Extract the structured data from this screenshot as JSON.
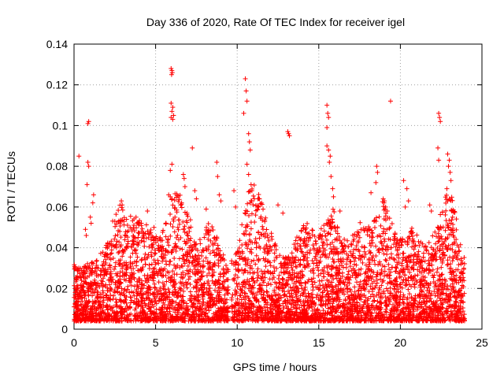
{
  "chart_data": {
    "type": "scatter",
    "title": "Day 336 of 2020, Rate Of TEC Index for receiver igel",
    "xlabel": "GPS time / hours",
    "ylabel": "ROTI / TECUs",
    "xlim": [
      0,
      25
    ],
    "ylim": [
      0,
      0.14
    ],
    "xticks": [
      0,
      5,
      10,
      15,
      20,
      25
    ],
    "xtick_labels": [
      "0",
      "5",
      "10",
      "15",
      "20",
      "25"
    ],
    "yticks": [
      0,
      0.02,
      0.04,
      0.06,
      0.08,
      0.1,
      0.12,
      0.14
    ],
    "ytick_labels": [
      "0",
      "0.02",
      "0.04",
      "0.06",
      "0.08",
      "0.1",
      "0.12",
      "0.14"
    ],
    "grid": true,
    "marker": "plus",
    "color": "#ff0000",
    "series": [
      {
        "name": "ROTI",
        "points": [
          [
            0.3,
            0.085
          ],
          [
            0.85,
            0.101
          ],
          [
            0.9,
            0.102
          ],
          [
            0.85,
            0.082
          ],
          [
            0.9,
            0.08
          ],
          [
            0.8,
            0.071
          ],
          [
            1.2,
            0.066
          ],
          [
            1.15,
            0.062
          ],
          [
            1.0,
            0.055
          ],
          [
            1.05,
            0.052
          ],
          [
            0.7,
            0.049
          ],
          [
            0.75,
            0.046
          ],
          [
            2.5,
            0.053
          ],
          [
            2.9,
            0.063
          ],
          [
            2.95,
            0.061
          ],
          [
            3.8,
            0.055
          ],
          [
            4.5,
            0.058
          ],
          [
            4.9,
            0.05
          ],
          [
            5.8,
            0.066
          ],
          [
            5.9,
            0.065
          ],
          [
            5.9,
            0.078
          ],
          [
            6.0,
            0.081
          ],
          [
            5.95,
            0.128
          ],
          [
            6.0,
            0.127
          ],
          [
            5.98,
            0.125
          ],
          [
            6.02,
            0.126
          ],
          [
            5.95,
            0.111
          ],
          [
            6.05,
            0.109
          ],
          [
            6.0,
            0.107
          ],
          [
            6.1,
            0.105
          ],
          [
            5.95,
            0.104
          ],
          [
            6.05,
            0.103
          ],
          [
            6.7,
            0.076
          ],
          [
            6.75,
            0.074
          ],
          [
            6.8,
            0.07
          ],
          [
            7.25,
            0.089
          ],
          [
            7.4,
            0.068
          ],
          [
            7.5,
            0.064
          ],
          [
            8.1,
            0.059
          ],
          [
            8.75,
            0.082
          ],
          [
            8.8,
            0.075
          ],
          [
            8.9,
            0.066
          ],
          [
            9.0,
            0.063
          ],
          [
            9.8,
            0.068
          ],
          [
            9.9,
            0.06
          ],
          [
            10.4,
            0.106
          ],
          [
            10.5,
            0.123
          ],
          [
            10.55,
            0.117
          ],
          [
            10.6,
            0.112
          ],
          [
            10.7,
            0.096
          ],
          [
            10.75,
            0.092
          ],
          [
            10.8,
            0.088
          ],
          [
            10.6,
            0.081
          ],
          [
            10.7,
            0.076
          ],
          [
            10.85,
            0.071
          ],
          [
            10.9,
            0.068
          ],
          [
            11.05,
            0.064
          ],
          [
            11.3,
            0.06
          ],
          [
            12.5,
            0.061
          ],
          [
            12.8,
            0.057
          ],
          [
            13.1,
            0.097
          ],
          [
            13.2,
            0.095
          ],
          [
            13.15,
            0.096
          ],
          [
            15.5,
            0.11
          ],
          [
            15.55,
            0.106
          ],
          [
            15.6,
            0.104
          ],
          [
            15.5,
            0.099
          ],
          [
            15.5,
            0.09
          ],
          [
            15.6,
            0.088
          ],
          [
            15.7,
            0.085
          ],
          [
            15.65,
            0.082
          ],
          [
            15.75,
            0.075
          ],
          [
            15.85,
            0.069
          ],
          [
            15.9,
            0.065
          ],
          [
            16.3,
            0.058
          ],
          [
            18.2,
            0.067
          ],
          [
            18.55,
            0.08
          ],
          [
            18.6,
            0.077
          ],
          [
            18.5,
            0.072
          ],
          [
            18.95,
            0.064
          ],
          [
            19.0,
            0.062
          ],
          [
            19.1,
            0.06
          ],
          [
            19.2,
            0.058
          ],
          [
            19.4,
            0.112
          ],
          [
            20.2,
            0.073
          ],
          [
            20.4,
            0.069
          ],
          [
            20.5,
            0.063
          ],
          [
            20.3,
            0.06
          ],
          [
            21.8,
            0.061
          ],
          [
            21.9,
            0.058
          ],
          [
            22.35,
            0.106
          ],
          [
            22.4,
            0.104
          ],
          [
            22.45,
            0.102
          ],
          [
            22.3,
            0.089
          ],
          [
            22.35,
            0.083
          ],
          [
            22.9,
            0.086
          ],
          [
            23.0,
            0.083
          ],
          [
            22.95,
            0.08
          ],
          [
            23.05,
            0.077
          ],
          [
            23.1,
            0.073
          ],
          [
            22.85,
            0.069
          ],
          [
            23.0,
            0.064
          ],
          [
            23.15,
            0.058
          ],
          [
            23.2,
            0.055
          ],
          [
            23.1,
            0.052
          ]
        ],
        "dense_region": {
          "x_range": [
            [
              0,
              9.6
            ],
            [
              9.6,
              24.0
            ]
          ],
          "y_typical": [
            0.004,
            0.035
          ],
          "note": "continuous dense band of points covering the full day"
        }
      }
    ]
  }
}
